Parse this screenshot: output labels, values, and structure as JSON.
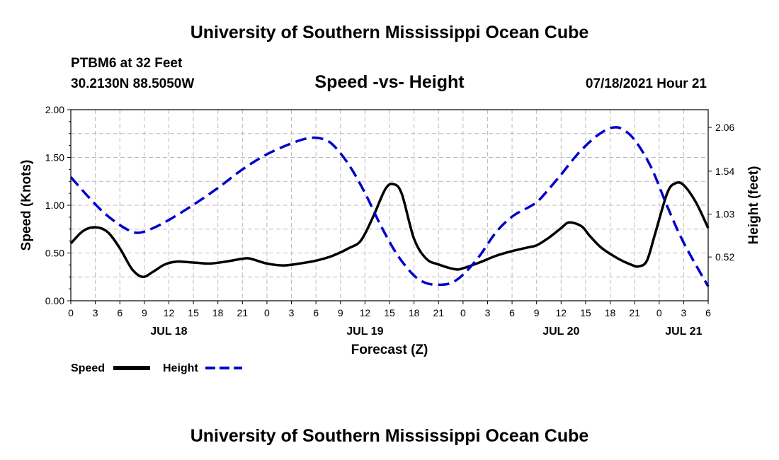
{
  "header": {
    "title_top": "University of Southern Mississippi Ocean Cube",
    "title_bottom": "University of Southern Mississippi Ocean Cube",
    "station": "PTBM6 at 32 Feet",
    "coords": "30.2130N  88.5050W",
    "plot_title": "Speed -vs- Height",
    "datetime": "07/18/2021 Hour 21"
  },
  "colors": {
    "speed": "#000000",
    "height": "#0000cc",
    "grid": "#bbbbbb"
  },
  "chart_data": {
    "type": "line",
    "title": "Speed -vs- Height",
    "xlabel": "Forecast (Z)",
    "ylabel": "Speed (Knots)",
    "y2label": "Height (feet)",
    "xlim": [
      0,
      78
    ],
    "ylim": [
      0,
      2.0
    ],
    "y2lim": [
      0,
      2.27
    ],
    "grid": true,
    "x_tick_hours": [
      0,
      3,
      6,
      9,
      12,
      15,
      18,
      21,
      24,
      27,
      30,
      33,
      36,
      39,
      42,
      45,
      48,
      51,
      54,
      57,
      60,
      63,
      66,
      69,
      72,
      75,
      78
    ],
    "x_tick_labels": [
      "0",
      "3",
      "6",
      "9",
      "12",
      "15",
      "18",
      "21",
      "0",
      "3",
      "6",
      "9",
      "12",
      "15",
      "18",
      "21",
      "0",
      "3",
      "6",
      "9",
      "12",
      "15",
      "18",
      "21",
      "0",
      "3",
      "6"
    ],
    "date_labels": [
      {
        "hour": 12,
        "label": "JUL 18"
      },
      {
        "hour": 36,
        "label": "JUL 19"
      },
      {
        "hour": 60,
        "label": "JUL 20"
      },
      {
        "hour": 75,
        "label": "JUL 21"
      }
    ],
    "y_ticks": [
      "0.00",
      "0.50",
      "1.00",
      "1.50",
      "2.00"
    ],
    "y_tick_values": [
      0,
      0.5,
      1.0,
      1.5,
      2.0
    ],
    "y2_ticks": [
      "0.52",
      "1.03",
      "1.54",
      "2.06"
    ],
    "y2_tick_values": [
      0.52,
      1.03,
      1.54,
      2.06
    ],
    "series": [
      {
        "name": "Speed",
        "axis": "left",
        "style": "solid",
        "x": [
          0,
          1.5,
          3,
          4.5,
          6,
          7.5,
          8.8,
          10,
          11.5,
          13,
          15,
          17,
          19,
          21,
          22,
          24,
          26,
          28,
          30,
          32,
          34,
          35.5,
          37,
          38.5,
          39.5,
          40.5,
          42,
          43.5,
          45,
          47,
          48,
          50,
          52,
          54,
          56,
          57,
          58.5,
          60,
          61,
          62.5,
          63.5,
          65,
          67,
          68.5,
          69.5,
          70.5,
          71.5,
          73,
          74,
          75,
          76.5,
          78
        ],
        "y": [
          0.6,
          0.73,
          0.77,
          0.72,
          0.55,
          0.33,
          0.25,
          0.3,
          0.38,
          0.41,
          0.4,
          0.39,
          0.41,
          0.44,
          0.44,
          0.39,
          0.37,
          0.39,
          0.42,
          0.47,
          0.55,
          0.63,
          0.88,
          1.17,
          1.22,
          1.12,
          0.65,
          0.44,
          0.38,
          0.33,
          0.34,
          0.4,
          0.47,
          0.52,
          0.56,
          0.58,
          0.66,
          0.76,
          0.82,
          0.78,
          0.68,
          0.55,
          0.44,
          0.38,
          0.36,
          0.42,
          0.7,
          1.13,
          1.23,
          1.21,
          1.03,
          0.76
        ]
      },
      {
        "name": "Height",
        "axis": "right",
        "style": "dashed",
        "x": [
          0,
          2,
          4,
          6,
          7.5,
          8.5,
          10,
          12,
          15,
          18,
          21,
          24,
          27,
          29,
          30.5,
          32,
          34,
          36,
          38,
          40,
          42,
          43.5,
          45,
          46.5,
          48,
          50,
          52,
          54,
          56,
          57,
          58,
          60,
          62,
          64,
          65.5,
          66.5,
          67.5,
          69,
          71,
          73,
          75,
          78
        ],
        "y": [
          1.47,
          1.25,
          1.05,
          0.9,
          0.82,
          0.81,
          0.86,
          0.96,
          1.14,
          1.34,
          1.56,
          1.74,
          1.87,
          1.93,
          1.93,
          1.86,
          1.62,
          1.28,
          0.88,
          0.54,
          0.3,
          0.21,
          0.19,
          0.21,
          0.31,
          0.53,
          0.81,
          1.0,
          1.11,
          1.17,
          1.27,
          1.5,
          1.74,
          1.93,
          2.03,
          2.06,
          2.04,
          1.91,
          1.59,
          1.12,
          0.69,
          0.17
        ]
      }
    ],
    "legend": [
      {
        "label": "Speed",
        "style": "solid"
      },
      {
        "label": "Height",
        "style": "dashed"
      }
    ]
  }
}
